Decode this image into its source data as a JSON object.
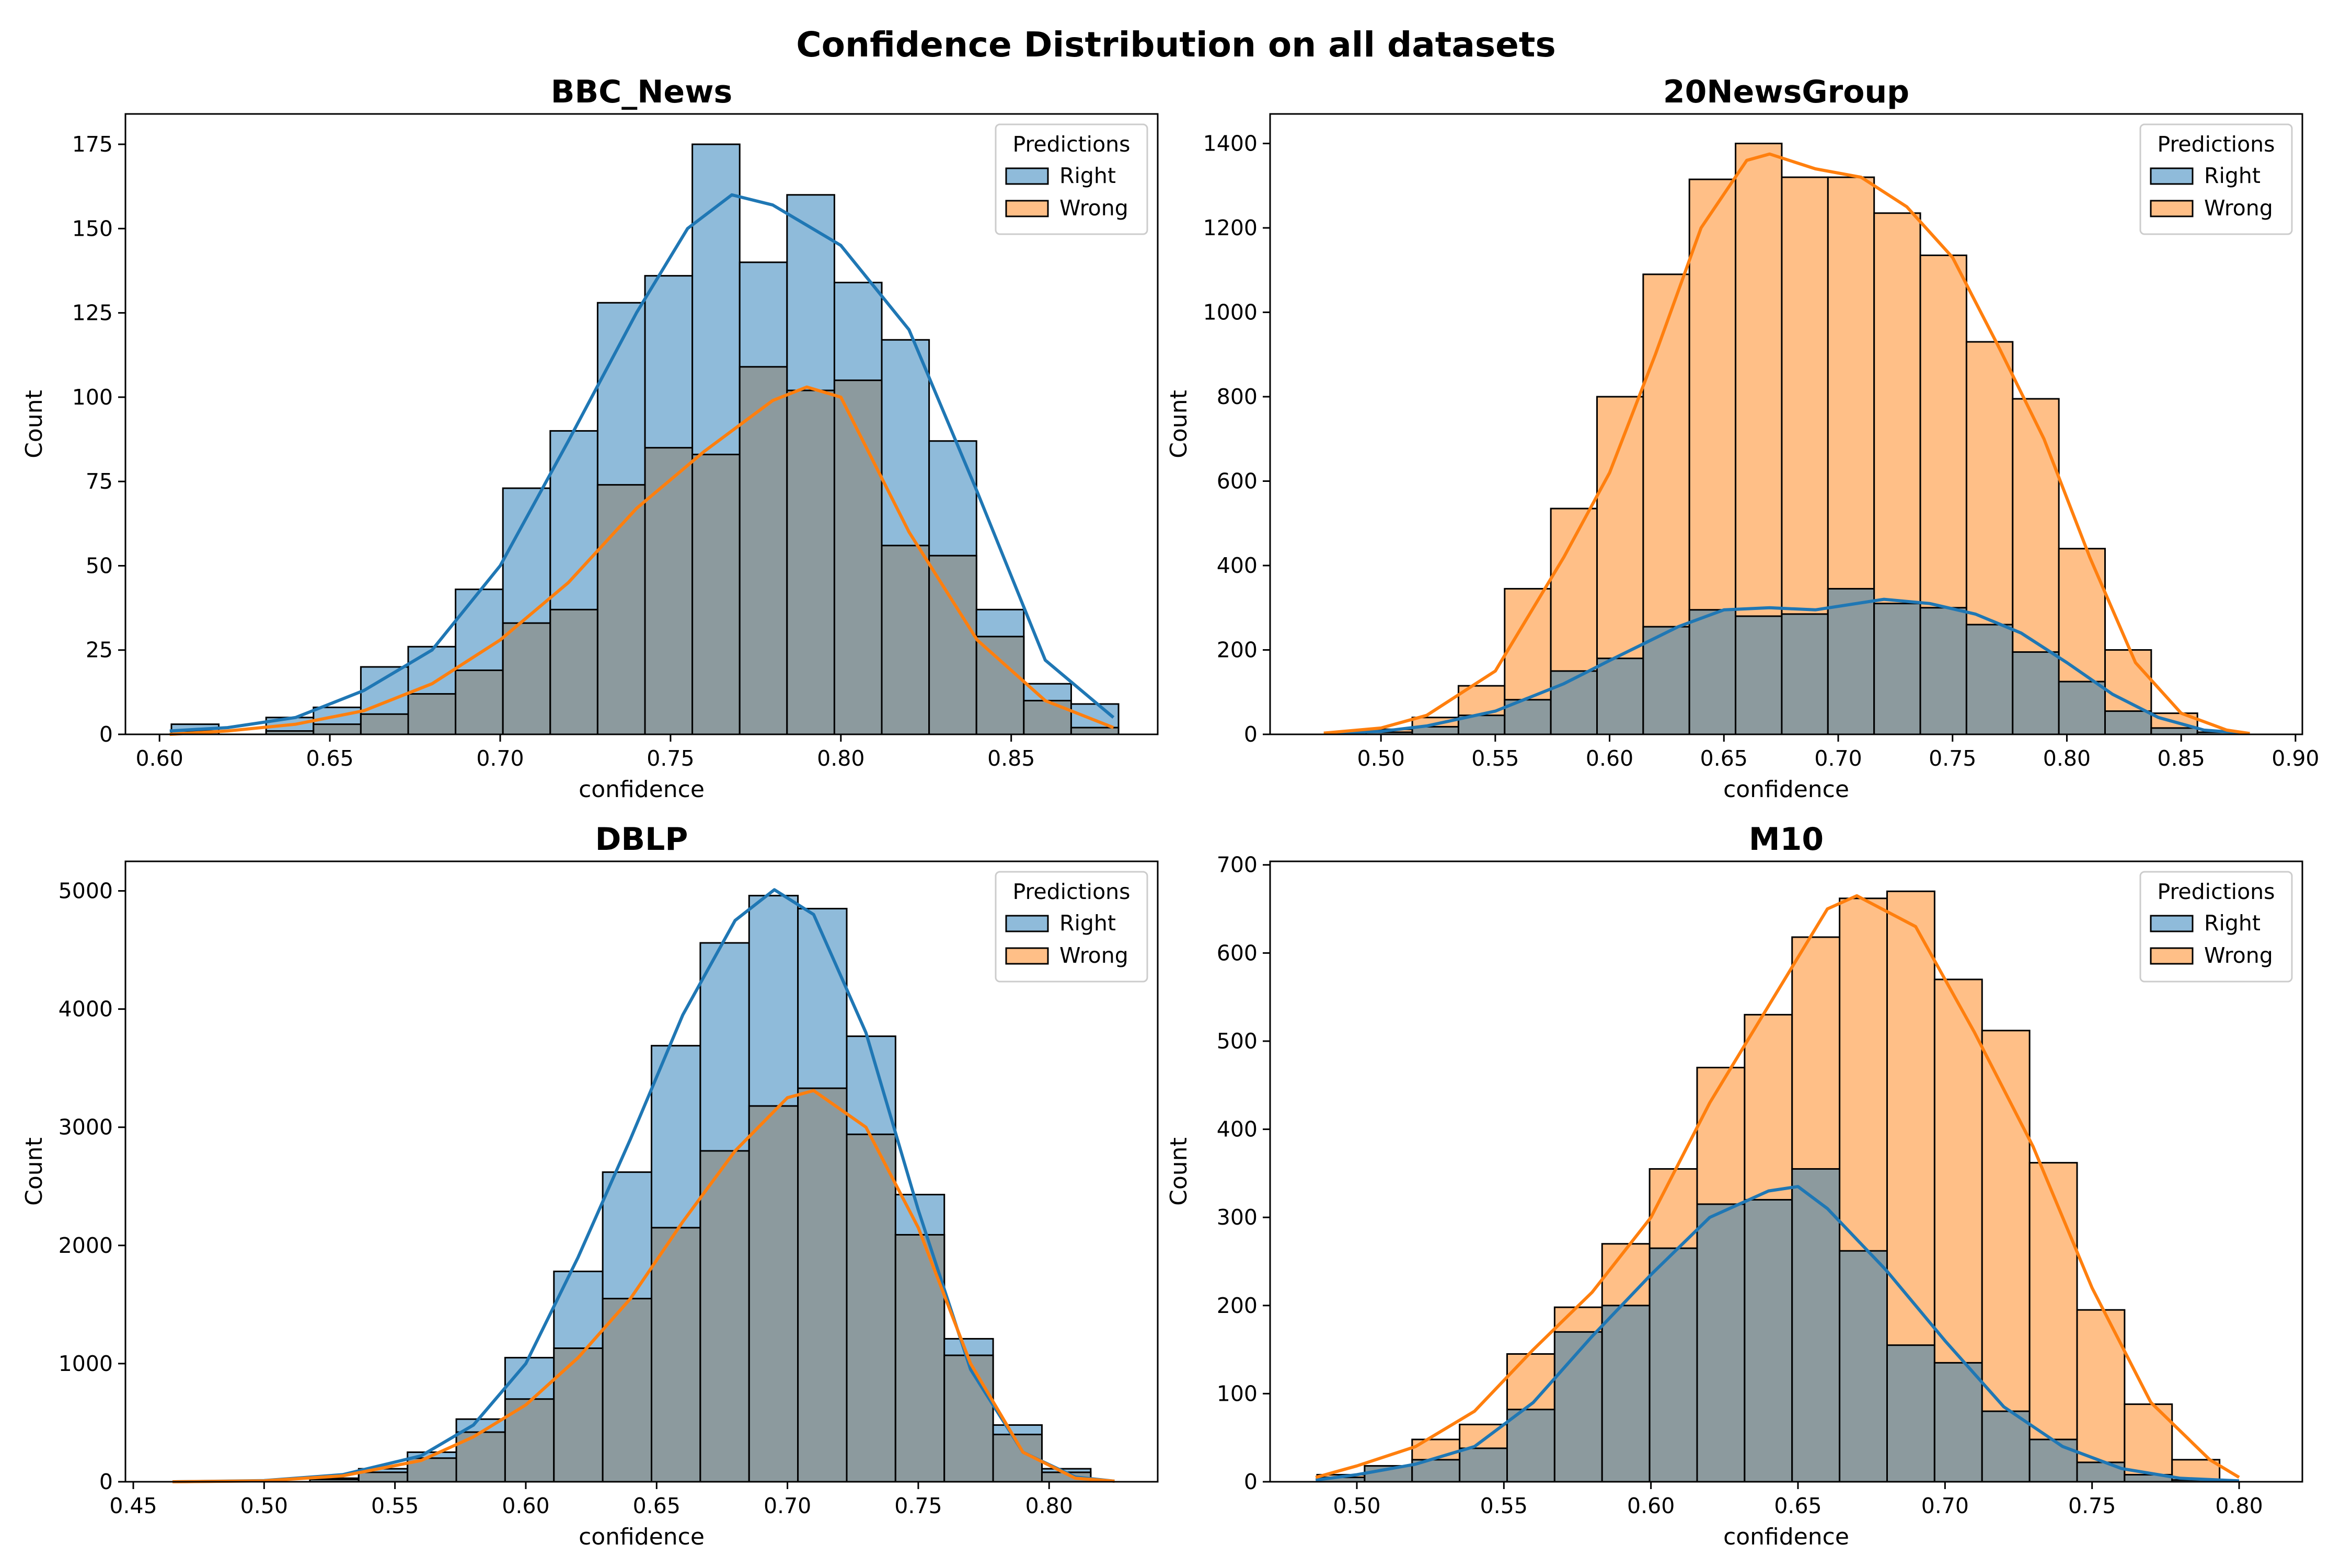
{
  "figure": {
    "suptitle": "Confidence Distribution on all datasets"
  },
  "colors": {
    "right_fill": "#1f77b4",
    "wrong_fill": "#ff7f0e",
    "right_line": "#1f77b4",
    "wrong_line": "#ff7f0e",
    "overlap_fill": "#8c9a9e"
  },
  "chart_data": [
    {
      "type": "histogram-kde",
      "title": "BBC_News",
      "xlabel": "confidence",
      "ylabel": "Count",
      "xlim": [
        0.59,
        0.893
      ],
      "ylim": [
        0,
        184
      ],
      "xticks": [
        0.6,
        0.65,
        0.7,
        0.75,
        0.8,
        0.85
      ],
      "xtick_labels": [
        "0.60",
        "0.65",
        "0.70",
        "0.75",
        "0.80",
        "0.85"
      ],
      "yticks": [
        0,
        25,
        50,
        75,
        100,
        125,
        150,
        175
      ],
      "ytick_labels": [
        "0",
        "25",
        "50",
        "75",
        "100",
        "125",
        "150",
        "175"
      ],
      "legend": {
        "title": "Predictions",
        "position": "upper-right",
        "entries": [
          "Right",
          "Wrong"
        ]
      },
      "bins": {
        "start": 0.6035,
        "width": 0.0139,
        "count": 20
      },
      "series": [
        {
          "name": "Right",
          "counts": [
            3,
            0,
            5,
            8,
            20,
            26,
            43,
            73,
            90,
            128,
            136,
            175,
            140,
            160,
            134,
            117,
            87,
            37,
            15,
            9
          ],
          "kde": [
            [
              0.603,
              1
            ],
            [
              0.62,
              2
            ],
            [
              0.64,
              5
            ],
            [
              0.66,
              13
            ],
            [
              0.68,
              25
            ],
            [
              0.7,
              50
            ],
            [
              0.72,
              87
            ],
            [
              0.74,
              125
            ],
            [
              0.755,
              150
            ],
            [
              0.768,
              160
            ],
            [
              0.78,
              157
            ],
            [
              0.8,
              145
            ],
            [
              0.82,
              120
            ],
            [
              0.84,
              72
            ],
            [
              0.86,
              22
            ],
            [
              0.88,
              5
            ]
          ]
        },
        {
          "name": "Wrong",
          "counts": [
            1,
            0,
            1,
            3,
            6,
            12,
            19,
            33,
            37,
            74,
            85,
            83,
            109,
            102,
            105,
            56,
            53,
            29,
            10,
            2
          ],
          "kde": [
            [
              0.603,
              0
            ],
            [
              0.62,
              1
            ],
            [
              0.64,
              3
            ],
            [
              0.66,
              7
            ],
            [
              0.68,
              15
            ],
            [
              0.7,
              28
            ],
            [
              0.72,
              45
            ],
            [
              0.74,
              67
            ],
            [
              0.76,
              84
            ],
            [
              0.78,
              99
            ],
            [
              0.79,
              103
            ],
            [
              0.8,
              100
            ],
            [
              0.82,
              60
            ],
            [
              0.84,
              28
            ],
            [
              0.86,
              10
            ],
            [
              0.88,
              2
            ]
          ]
        }
      ]
    },
    {
      "type": "histogram-kde",
      "title": "20NewsGroup",
      "xlabel": "confidence",
      "ylabel": "Count",
      "xlim": [
        0.4515,
        0.903
      ],
      "ylim": [
        0,
        1470
      ],
      "xticks": [
        0.5,
        0.55,
        0.6,
        0.65,
        0.7,
        0.75,
        0.8,
        0.85,
        0.9
      ],
      "xtick_labels": [
        "0.50",
        "0.55",
        "0.60",
        "0.65",
        "0.70",
        "0.75",
        "0.80",
        "0.85",
        "0.90"
      ],
      "yticks": [
        0,
        200,
        400,
        600,
        800,
        1000,
        1200,
        1400
      ],
      "ytick_labels": [
        "0",
        "200",
        "400",
        "600",
        "800",
        "1000",
        "1200",
        "1400"
      ],
      "legend": {
        "title": "Predictions",
        "position": "upper-right",
        "entries": [
          "Right",
          "Wrong"
        ]
      },
      "bins": {
        "start": 0.4935,
        "width": 0.0202,
        "count": 20
      },
      "series": [
        {
          "name": "Right",
          "counts": [
            5,
            18,
            45,
            82,
            150,
            180,
            255,
            295,
            280,
            285,
            345,
            310,
            300,
            260,
            195,
            125,
            55,
            15,
            5,
            0
          ],
          "kde": [
            [
              0.475,
              2
            ],
            [
              0.5,
              7
            ],
            [
              0.52,
              20
            ],
            [
              0.55,
              55
            ],
            [
              0.58,
              120
            ],
            [
              0.6,
              175
            ],
            [
              0.63,
              255
            ],
            [
              0.65,
              295
            ],
            [
              0.67,
              300
            ],
            [
              0.69,
              295
            ],
            [
              0.72,
              320
            ],
            [
              0.74,
              310
            ],
            [
              0.76,
              285
            ],
            [
              0.78,
              240
            ],
            [
              0.8,
              170
            ],
            [
              0.82,
              95
            ],
            [
              0.84,
              40
            ],
            [
              0.86,
              10
            ],
            [
              0.88,
              2
            ]
          ]
        },
        {
          "name": "Wrong",
          "counts": [
            12,
            40,
            115,
            345,
            535,
            800,
            1090,
            1315,
            1400,
            1320,
            1320,
            1235,
            1135,
            930,
            795,
            440,
            200,
            50,
            5,
            0
          ],
          "kde": [
            [
              0.475,
              3
            ],
            [
              0.5,
              15
            ],
            [
              0.52,
              45
            ],
            [
              0.55,
              150
            ],
            [
              0.58,
              420
            ],
            [
              0.6,
              620
            ],
            [
              0.62,
              900
            ],
            [
              0.64,
              1200
            ],
            [
              0.66,
              1360
            ],
            [
              0.67,
              1375
            ],
            [
              0.69,
              1340
            ],
            [
              0.71,
              1320
            ],
            [
              0.73,
              1250
            ],
            [
              0.75,
              1130
            ],
            [
              0.77,
              920
            ],
            [
              0.79,
              700
            ],
            [
              0.81,
              420
            ],
            [
              0.83,
              170
            ],
            [
              0.85,
              50
            ],
            [
              0.87,
              10
            ],
            [
              0.88,
              2
            ]
          ]
        }
      ]
    },
    {
      "type": "histogram-kde",
      "title": "DBLP",
      "xlabel": "confidence",
      "ylabel": "Count",
      "xlim": [
        0.447,
        0.8415
      ],
      "ylim": [
        0,
        5250
      ],
      "xticks": [
        0.45,
        0.5,
        0.55,
        0.6,
        0.65,
        0.7,
        0.75,
        0.8
      ],
      "xtick_labels": [
        "0.45",
        "0.50",
        "0.55",
        "0.60",
        "0.65",
        "0.70",
        "0.75",
        "0.80"
      ],
      "yticks": [
        0,
        1000,
        2000,
        3000,
        4000,
        5000
      ],
      "ytick_labels": [
        "0",
        "1000",
        "2000",
        "3000",
        "4000",
        "5000"
      ],
      "legend": {
        "title": "Predictions",
        "position": "upper-right",
        "entries": [
          "Right",
          "Wrong"
        ]
      },
      "bins": {
        "start": 0.5175,
        "width": 0.01865,
        "count": 16
      },
      "series": [
        {
          "name": "Right",
          "counts": [
            30,
            110,
            250,
            530,
            1050,
            1780,
            2620,
            3690,
            4560,
            4960,
            4850,
            3770,
            2430,
            1210,
            480,
            110
          ],
          "kde": [
            [
              0.465,
              0
            ],
            [
              0.5,
              10
            ],
            [
              0.53,
              60
            ],
            [
              0.56,
              220
            ],
            [
              0.58,
              480
            ],
            [
              0.6,
              1000
            ],
            [
              0.62,
              1900
            ],
            [
              0.64,
              2900
            ],
            [
              0.66,
              3950
            ],
            [
              0.68,
              4750
            ],
            [
              0.695,
              5010
            ],
            [
              0.71,
              4800
            ],
            [
              0.73,
              3800
            ],
            [
              0.75,
              2300
            ],
            [
              0.77,
              950
            ],
            [
              0.79,
              250
            ],
            [
              0.81,
              40
            ],
            [
              0.825,
              5
            ]
          ]
        },
        {
          "name": "Wrong",
          "counts": [
            20,
            80,
            200,
            420,
            700,
            1130,
            1550,
            2150,
            2800,
            3180,
            3330,
            2940,
            2090,
            1070,
            400,
            80
          ],
          "kde": [
            [
              0.465,
              0
            ],
            [
              0.5,
              8
            ],
            [
              0.53,
              50
            ],
            [
              0.56,
              180
            ],
            [
              0.58,
              380
            ],
            [
              0.6,
              650
            ],
            [
              0.62,
              1050
            ],
            [
              0.64,
              1550
            ],
            [
              0.66,
              2200
            ],
            [
              0.68,
              2800
            ],
            [
              0.7,
              3250
            ],
            [
              0.71,
              3310
            ],
            [
              0.73,
              3000
            ],
            [
              0.75,
              2150
            ],
            [
              0.77,
              1000
            ],
            [
              0.79,
              250
            ],
            [
              0.81,
              30
            ],
            [
              0.825,
              5
            ]
          ]
        }
      ]
    },
    {
      "type": "histogram-kde",
      "title": "M10",
      "xlabel": "confidence",
      "ylabel": "Count",
      "xlim": [
        0.4705,
        0.8215
      ],
      "ylim": [
        0,
        704
      ],
      "xticks": [
        0.5,
        0.55,
        0.6,
        0.65,
        0.7,
        0.75,
        0.8
      ],
      "xtick_labels": [
        "0.50",
        "0.55",
        "0.60",
        "0.65",
        "0.70",
        "0.75",
        "0.80"
      ],
      "yticks": [
        0,
        100,
        200,
        300,
        400,
        500,
        600,
        700
      ],
      "ytick_labels": [
        "0",
        "100",
        "200",
        "300",
        "400",
        "500",
        "600",
        "700"
      ],
      "legend": {
        "title": "Predictions",
        "position": "upper-right",
        "entries": [
          "Right",
          "Wrong"
        ]
      },
      "bins": {
        "start": 0.4865,
        "width": 0.01615,
        "count": 19
      },
      "series": [
        {
          "name": "Right",
          "counts": [
            5,
            18,
            25,
            38,
            82,
            170,
            200,
            265,
            315,
            320,
            355,
            262,
            155,
            135,
            80,
            48,
            22,
            8,
            2
          ],
          "kde": [
            [
              0.486,
              2
            ],
            [
              0.5,
              8
            ],
            [
              0.52,
              20
            ],
            [
              0.54,
              40
            ],
            [
              0.56,
              90
            ],
            [
              0.58,
              165
            ],
            [
              0.6,
              235
            ],
            [
              0.62,
              300
            ],
            [
              0.64,
              330
            ],
            [
              0.65,
              335
            ],
            [
              0.66,
              310
            ],
            [
              0.68,
              240
            ],
            [
              0.7,
              160
            ],
            [
              0.72,
              85
            ],
            [
              0.74,
              40
            ],
            [
              0.76,
              15
            ],
            [
              0.78,
              4
            ],
            [
              0.8,
              1
            ]
          ]
        },
        {
          "name": "Wrong",
          "counts": [
            8,
            18,
            48,
            65,
            145,
            198,
            270,
            355,
            470,
            530,
            618,
            662,
            670,
            570,
            512,
            362,
            195,
            88,
            25
          ],
          "kde": [
            [
              0.486,
              5
            ],
            [
              0.5,
              18
            ],
            [
              0.52,
              40
            ],
            [
              0.54,
              80
            ],
            [
              0.56,
              150
            ],
            [
              0.58,
              215
            ],
            [
              0.6,
              300
            ],
            [
              0.62,
              430
            ],
            [
              0.64,
              540
            ],
            [
              0.66,
              650
            ],
            [
              0.67,
              665
            ],
            [
              0.69,
              630
            ],
            [
              0.71,
              510
            ],
            [
              0.73,
              380
            ],
            [
              0.75,
              220
            ],
            [
              0.77,
              90
            ],
            [
              0.79,
              25
            ],
            [
              0.8,
              5
            ]
          ]
        }
      ]
    }
  ]
}
